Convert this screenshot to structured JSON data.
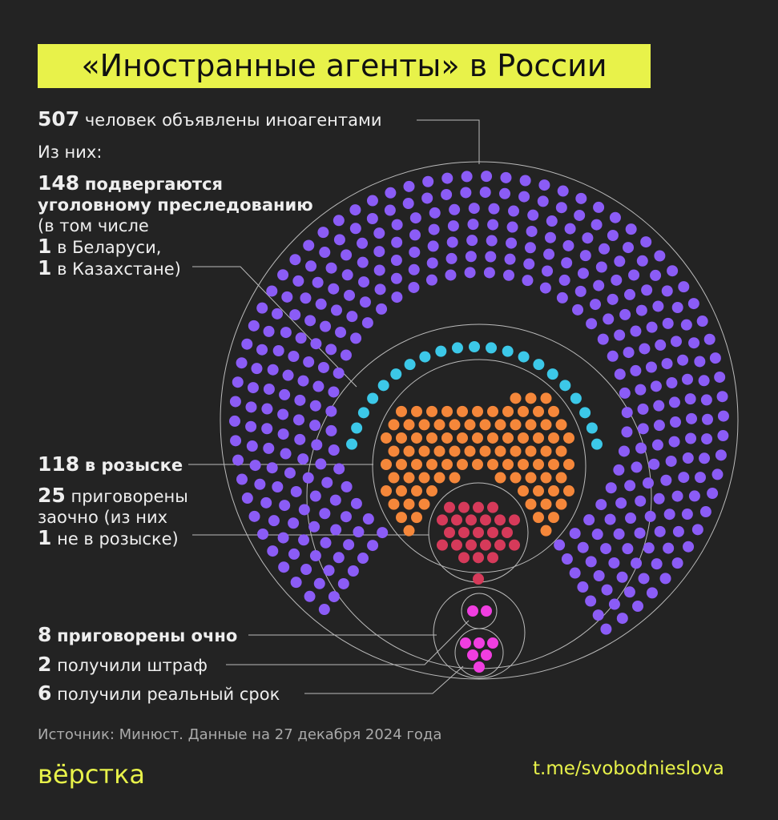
{
  "title": "«Иностранные агенты» в России",
  "total": {
    "count": 507,
    "text": "человек объявлены иноагентами"
  },
  "of_them": "Из них:",
  "prosecuted": {
    "count": 148,
    "lines": [
      "подвергаются",
      "уголовному преследованию"
    ],
    "note": "(в том числе",
    "belarus": {
      "count": 1,
      "text": "в Беларуси,"
    },
    "kazakhstan": {
      "count": 1,
      "text": "в Казахстане)"
    }
  },
  "wanted": {
    "count": 118,
    "text": "в розыске"
  },
  "absentia": {
    "count": 25,
    "lines": [
      "приговорены",
      "заочно (из них"
    ],
    "not_wanted": {
      "count": 1,
      "text": "не в розыске)"
    }
  },
  "in_person": {
    "count": 8,
    "text": "приговорены очно"
  },
  "fine": {
    "count": 2,
    "text": "получили штраф"
  },
  "prison": {
    "count": 6,
    "text": "получили реальный срок"
  },
  "source": "Источник: Минюст. Данные на 27 декабря 2024 года",
  "logo": "вёрстка",
  "link": "t.me/svobodnieslova"
}
